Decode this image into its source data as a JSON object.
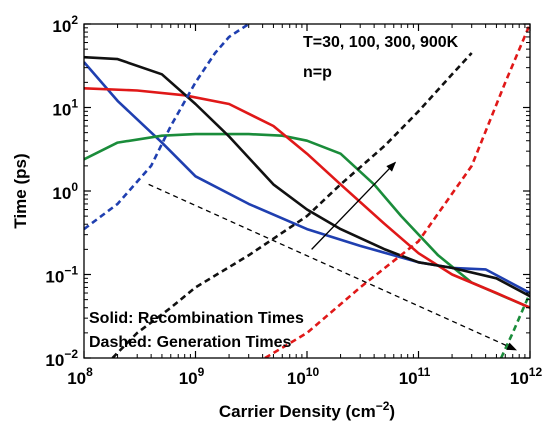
{
  "chart_data": {
    "type": "line",
    "xlabel": {
      "base": "Carrier Density (cm",
      "sup": "−2",
      "close": ")"
    },
    "ylabel": "Time (ps)",
    "xscale": "log",
    "yscale": "log",
    "xlim": [
      100000000.0,
      1000000000000.0
    ],
    "ylim": [
      0.01,
      100
    ],
    "grid": false,
    "x_ticks": [
      {
        "value": 100000000.0,
        "base": "10",
        "exp": "8"
      },
      {
        "value": 1000000000.0,
        "base": "10",
        "exp": "9"
      },
      {
        "value": 10000000000.0,
        "base": "10",
        "exp": "10"
      },
      {
        "value": 100000000000.0,
        "base": "10",
        "exp": "11"
      },
      {
        "value": 1000000000000.0,
        "base": "10",
        "exp": "12"
      }
    ],
    "y_ticks": [
      {
        "value": 0.01,
        "base": "10",
        "exp": "−2"
      },
      {
        "value": 0.1,
        "base": "10",
        "exp": "−1"
      },
      {
        "value": 1,
        "base": "10",
        "exp": "0"
      },
      {
        "value": 10,
        "base": "10",
        "exp": "1"
      },
      {
        "value": 100,
        "base": "10",
        "exp": "2"
      }
    ],
    "annotations": {
      "temps": "T=30, 100, 300, 900K",
      "np": "n=p",
      "solid_note": "Solid: Recombination Times",
      "dashed_note": "Dashed: Generation Times"
    },
    "arrows": [
      {
        "from": [
          11000000000.0,
          0.2
        ],
        "to": [
          62000000000.0,
          2.2
        ]
      },
      {
        "from": [
          380000000.0,
          1.2
        ],
        "to": [
          750000000000.0,
          0.0125
        ]
      }
    ],
    "series": [
      {
        "style": "solid",
        "color": "#1f3fb0",
        "x": [
          100000000.0,
          200000000.0,
          500000000.0,
          1000000000.0,
          3000000000.0,
          10000000000.0,
          30000000000.0,
          100000000000.0,
          200000000000.0,
          400000000000.0,
          1000000000000.0
        ],
        "y": [
          35,
          12,
          3.8,
          1.5,
          0.7,
          0.35,
          0.22,
          0.14,
          0.12,
          0.115,
          0.06
        ]
      },
      {
        "style": "solid",
        "color": "#1a8c3a",
        "x": [
          100000000.0,
          200000000.0,
          500000000.0,
          1000000000.0,
          3000000000.0,
          6000000000.0,
          10000000000.0,
          20000000000.0,
          40000000000.0,
          70000000000.0,
          150000000000.0,
          300000000000.0,
          1000000000000.0
        ],
        "y": [
          2.4,
          3.8,
          4.6,
          4.8,
          4.8,
          4.6,
          4.0,
          2.8,
          1.2,
          0.5,
          0.17,
          0.08,
          0.04
        ]
      },
      {
        "style": "solid",
        "color": "#e01818",
        "x": [
          100000000.0,
          300000000.0,
          800000000.0,
          2000000000.0,
          5000000000.0,
          10000000000.0,
          20000000000.0,
          50000000000.0,
          100000000000.0,
          200000000000.0,
          500000000000.0,
          1000000000000.0
        ],
        "y": [
          17,
          16,
          14,
          11,
          6,
          2.8,
          1.2,
          0.4,
          0.18,
          0.1,
          0.06,
          0.04
        ]
      },
      {
        "style": "solid",
        "color": "#111111",
        "x": [
          100000000.0,
          200000000.0,
          500000000.0,
          1000000000.0,
          2000000000.0,
          5000000000.0,
          10000000000.0,
          20000000000.0,
          50000000000.0,
          100000000000.0,
          200000000000.0,
          500000000000.0,
          1000000000000.0
        ],
        "y": [
          40,
          38,
          25,
          11,
          4.5,
          1.2,
          0.6,
          0.35,
          0.2,
          0.14,
          0.12,
          0.09,
          0.055
        ]
      },
      {
        "style": "dashed",
        "color": "#1f3fb0",
        "x": [
          100000000.0,
          200000000.0,
          400000000.0,
          600000000.0,
          1000000000.0,
          1500000000.0,
          2000000000.0,
          3000000000.0
        ],
        "y": [
          0.35,
          0.7,
          2.0,
          6.0,
          20,
          45,
          70,
          100
        ]
      },
      {
        "style": "dashed",
        "color": "#111111",
        "x": [
          180000000.0,
          300000000.0,
          600000000.0,
          1000000000.0,
          3000000000.0,
          10000000000.0,
          20000000000.0,
          50000000000.0,
          100000000000.0,
          200000000000.0,
          300000000000.0
        ],
        "y": [
          0.01,
          0.02,
          0.04,
          0.07,
          0.17,
          0.5,
          1.2,
          3.5,
          9,
          25,
          45
        ]
      },
      {
        "style": "dashed",
        "color": "#e01818",
        "x": [
          4200000000.0,
          7000000000.0,
          10000000000.0,
          30000000000.0,
          100000000000.0,
          300000000000.0,
          600000000000.0,
          1000000000000.0
        ],
        "y": [
          0.01,
          0.015,
          0.02,
          0.07,
          0.25,
          2,
          20,
          100
        ]
      },
      {
        "style": "dashed",
        "color": "#1a8c3a",
        "x": [
          550000000000.0,
          700000000000.0,
          1000000000000.0
        ],
        "y": [
          0.01,
          0.02,
          0.06
        ]
      }
    ]
  }
}
